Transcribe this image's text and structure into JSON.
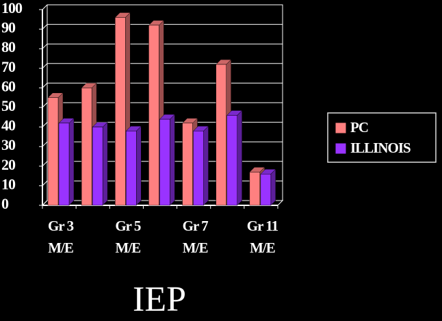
{
  "chart_data": {
    "type": "bar",
    "title": "IEP",
    "categories": [
      "Gr 3 M/E",
      null,
      "Gr 5 M/E",
      null,
      "Gr 7 M/E",
      null,
      "Gr 11 M/E"
    ],
    "series": [
      {
        "name": "PC",
        "color": "#ff8080",
        "values": [
          55,
          60,
          96,
          92,
          42,
          72,
          17
        ]
      },
      {
        "name": "ILLINOIS",
        "color": "#9933ff",
        "values": [
          42,
          40,
          38,
          44,
          38,
          46,
          16
        ]
      }
    ],
    "ylim": [
      0,
      100
    ],
    "yticks": [
      0,
      10,
      20,
      30,
      40,
      50,
      60,
      70,
      80,
      90,
      100
    ],
    "grid": true,
    "legend": "right"
  }
}
